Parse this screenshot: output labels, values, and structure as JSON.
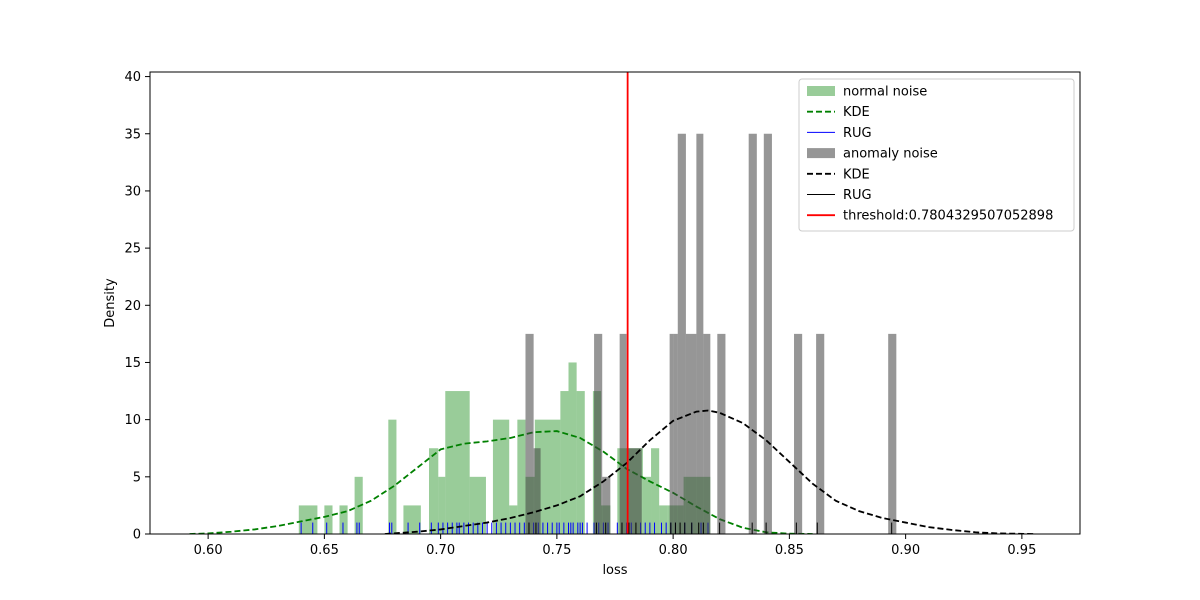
{
  "chart_data": {
    "type": "histogram",
    "xlabel": "loss",
    "ylabel": "Density",
    "xlim": [
      0.575,
      0.975
    ],
    "ylim": [
      0,
      40.4
    ],
    "xticks": [
      0.6,
      0.65,
      0.7,
      0.75,
      0.8,
      0.85,
      0.9,
      0.95
    ],
    "xtick_labels": [
      "0.60",
      "0.65",
      "0.70",
      "0.75",
      "0.80",
      "0.85",
      "0.90",
      "0.95"
    ],
    "yticks": [
      0,
      5,
      10,
      15,
      20,
      25,
      30,
      35,
      40
    ],
    "ytick_labels": [
      "0",
      "5",
      "10",
      "15",
      "20",
      "25",
      "30",
      "35",
      "40"
    ],
    "grid": false,
    "legend_position": "top-right",
    "threshold": {
      "value": 0.7804329507052898,
      "label": "threshold:0.7804329507052898",
      "color": "#ff0000"
    },
    "series": [
      {
        "name": "normal noise",
        "kind": "hist",
        "color": "#008000",
        "opacity": 0.4,
        "bars": [
          {
            "x0": 0.639,
            "x1": 0.647,
            "y": 2.5
          },
          {
            "x0": 0.65,
            "x1": 0.6535,
            "y": 2.5
          },
          {
            "x0": 0.6565,
            "x1": 0.66,
            "y": 2.5
          },
          {
            "x0": 0.663,
            "x1": 0.6665,
            "y": 5.0
          },
          {
            "x0": 0.6775,
            "x1": 0.681,
            "y": 10.0
          },
          {
            "x0": 0.684,
            "x1": 0.6915,
            "y": 2.5
          },
          {
            "x0": 0.695,
            "x1": 0.699,
            "y": 7.5
          },
          {
            "x0": 0.699,
            "x1": 0.702,
            "y": 5.0
          },
          {
            "x0": 0.702,
            "x1": 0.7125,
            "y": 12.5
          },
          {
            "x0": 0.7125,
            "x1": 0.7195,
            "y": 5.0
          },
          {
            "x0": 0.7225,
            "x1": 0.7295,
            "y": 10.0
          },
          {
            "x0": 0.7295,
            "x1": 0.733,
            "y": 2.5
          },
          {
            "x0": 0.733,
            "x1": 0.7365,
            "y": 10.0
          },
          {
            "x0": 0.7365,
            "x1": 0.7405,
            "y": 5.0
          },
          {
            "x0": 0.7405,
            "x1": 0.7515,
            "y": 10.0
          },
          {
            "x0": 0.7515,
            "x1": 0.755,
            "y": 12.5
          },
          {
            "x0": 0.755,
            "x1": 0.7585,
            "y": 15.0
          },
          {
            "x0": 0.7585,
            "x1": 0.762,
            "y": 12.5
          },
          {
            "x0": 0.7655,
            "x1": 0.769,
            "y": 12.5
          },
          {
            "x0": 0.769,
            "x1": 0.773,
            "y": 2.5
          },
          {
            "x0": 0.776,
            "x1": 0.78,
            "y": 7.5
          },
          {
            "x0": 0.78,
            "x1": 0.787,
            "y": 7.5
          },
          {
            "x0": 0.787,
            "x1": 0.7905,
            "y": 5.0
          },
          {
            "x0": 0.7905,
            "x1": 0.794,
            "y": 7.5
          },
          {
            "x0": 0.794,
            "x1": 0.7975,
            "y": 2.5
          },
          {
            "x0": 0.7975,
            "x1": 0.8045,
            "y": 2.5
          },
          {
            "x0": 0.8045,
            "x1": 0.816,
            "y": 5.0
          }
        ]
      },
      {
        "name": "KDE",
        "kind": "kde",
        "color": "#008000",
        "dash": "dashed",
        "x": [
          0.592,
          0.6,
          0.61,
          0.62,
          0.63,
          0.64,
          0.65,
          0.66,
          0.67,
          0.68,
          0.69,
          0.7,
          0.71,
          0.72,
          0.73,
          0.74,
          0.75,
          0.76,
          0.77,
          0.78,
          0.79,
          0.8,
          0.81,
          0.82,
          0.83,
          0.84,
          0.85,
          0.86
        ],
        "y": [
          0.0,
          0.05,
          0.2,
          0.4,
          0.7,
          1.1,
          1.5,
          2.0,
          2.9,
          4.2,
          5.8,
          7.4,
          7.9,
          8.1,
          8.4,
          8.9,
          9.0,
          8.4,
          7.2,
          5.7,
          4.6,
          3.6,
          2.4,
          1.3,
          0.55,
          0.15,
          0.03,
          0.0
        ]
      },
      {
        "name": "RUG",
        "kind": "rug",
        "color": "#0000ff",
        "height": 1.0,
        "x": [
          0.64,
          0.645,
          0.651,
          0.658,
          0.664,
          0.665,
          0.678,
          0.679,
          0.686,
          0.691,
          0.696,
          0.699,
          0.701,
          0.703,
          0.705,
          0.707,
          0.708,
          0.71,
          0.712,
          0.714,
          0.716,
          0.718,
          0.72,
          0.722,
          0.724,
          0.726,
          0.728,
          0.73,
          0.732,
          0.734,
          0.736,
          0.738,
          0.74,
          0.742,
          0.744,
          0.746,
          0.748,
          0.75,
          0.751,
          0.753,
          0.755,
          0.756,
          0.757,
          0.759,
          0.76,
          0.761,
          0.763,
          0.766,
          0.768,
          0.77,
          0.772,
          0.776,
          0.778,
          0.78,
          0.782,
          0.786,
          0.788,
          0.79,
          0.792,
          0.795,
          0.797,
          0.799,
          0.801,
          0.805,
          0.808,
          0.812,
          0.815
        ]
      },
      {
        "name": "anomaly noise",
        "kind": "hist",
        "color": "#404040",
        "opacity": 0.55,
        "bars": [
          {
            "x0": 0.7365,
            "x1": 0.74,
            "y": 17.5
          },
          {
            "x0": 0.74,
            "x1": 0.743,
            "y": 7.5
          },
          {
            "x0": 0.766,
            "x1": 0.7695,
            "y": 17.5
          },
          {
            "x0": 0.7695,
            "x1": 0.773,
            "y": 5.0
          },
          {
            "x0": 0.777,
            "x1": 0.78,
            "y": 17.5
          },
          {
            "x0": 0.78,
            "x1": 0.7865,
            "y": 7.5
          },
          {
            "x0": 0.7985,
            "x1": 0.8,
            "y": 17.5
          },
          {
            "x0": 0.8,
            "x1": 0.802,
            "y": 17.5
          },
          {
            "x0": 0.802,
            "x1": 0.8055,
            "y": 35.0
          },
          {
            "x0": 0.8055,
            "x1": 0.81,
            "y": 17.5
          },
          {
            "x0": 0.81,
            "x1": 0.813,
            "y": 35.0
          },
          {
            "x0": 0.813,
            "x1": 0.816,
            "y": 17.5
          },
          {
            "x0": 0.819,
            "x1": 0.8225,
            "y": 17.5
          },
          {
            "x0": 0.8325,
            "x1": 0.836,
            "y": 35.0
          },
          {
            "x0": 0.839,
            "x1": 0.8425,
            "y": 35.0
          },
          {
            "x0": 0.852,
            "x1": 0.8555,
            "y": 17.5
          },
          {
            "x0": 0.8615,
            "x1": 0.865,
            "y": 17.5
          },
          {
            "x0": 0.8925,
            "x1": 0.896,
            "y": 17.5
          }
        ]
      },
      {
        "name": "KDE",
        "kind": "kde",
        "color": "#000000",
        "dash": "dashed",
        "x": [
          0.676,
          0.69,
          0.7,
          0.71,
          0.72,
          0.73,
          0.74,
          0.75,
          0.76,
          0.77,
          0.78,
          0.79,
          0.8,
          0.81,
          0.815,
          0.82,
          0.83,
          0.84,
          0.85,
          0.86,
          0.87,
          0.88,
          0.89,
          0.9,
          0.91,
          0.92,
          0.93,
          0.94,
          0.955
        ],
        "y": [
          0.0,
          0.2,
          0.4,
          0.7,
          1.0,
          1.4,
          1.9,
          2.5,
          3.3,
          4.6,
          6.2,
          8.2,
          9.9,
          10.7,
          10.8,
          10.6,
          9.7,
          8.2,
          6.3,
          4.4,
          2.9,
          2.0,
          1.4,
          1.0,
          0.6,
          0.35,
          0.15,
          0.05,
          0.0
        ]
      },
      {
        "name": "RUG",
        "kind": "rug",
        "color": "#000000",
        "height": 1.0,
        "x": [
          0.738,
          0.741,
          0.767,
          0.771,
          0.778,
          0.781,
          0.784,
          0.799,
          0.801,
          0.803,
          0.805,
          0.808,
          0.811,
          0.813,
          0.82,
          0.834,
          0.84,
          0.853,
          0.862,
          0.894
        ]
      },
      {
        "name": "threshold:0.7804329507052898",
        "kind": "vline",
        "color": "#ff0000",
        "x": 0.7804329507052898
      }
    ]
  }
}
